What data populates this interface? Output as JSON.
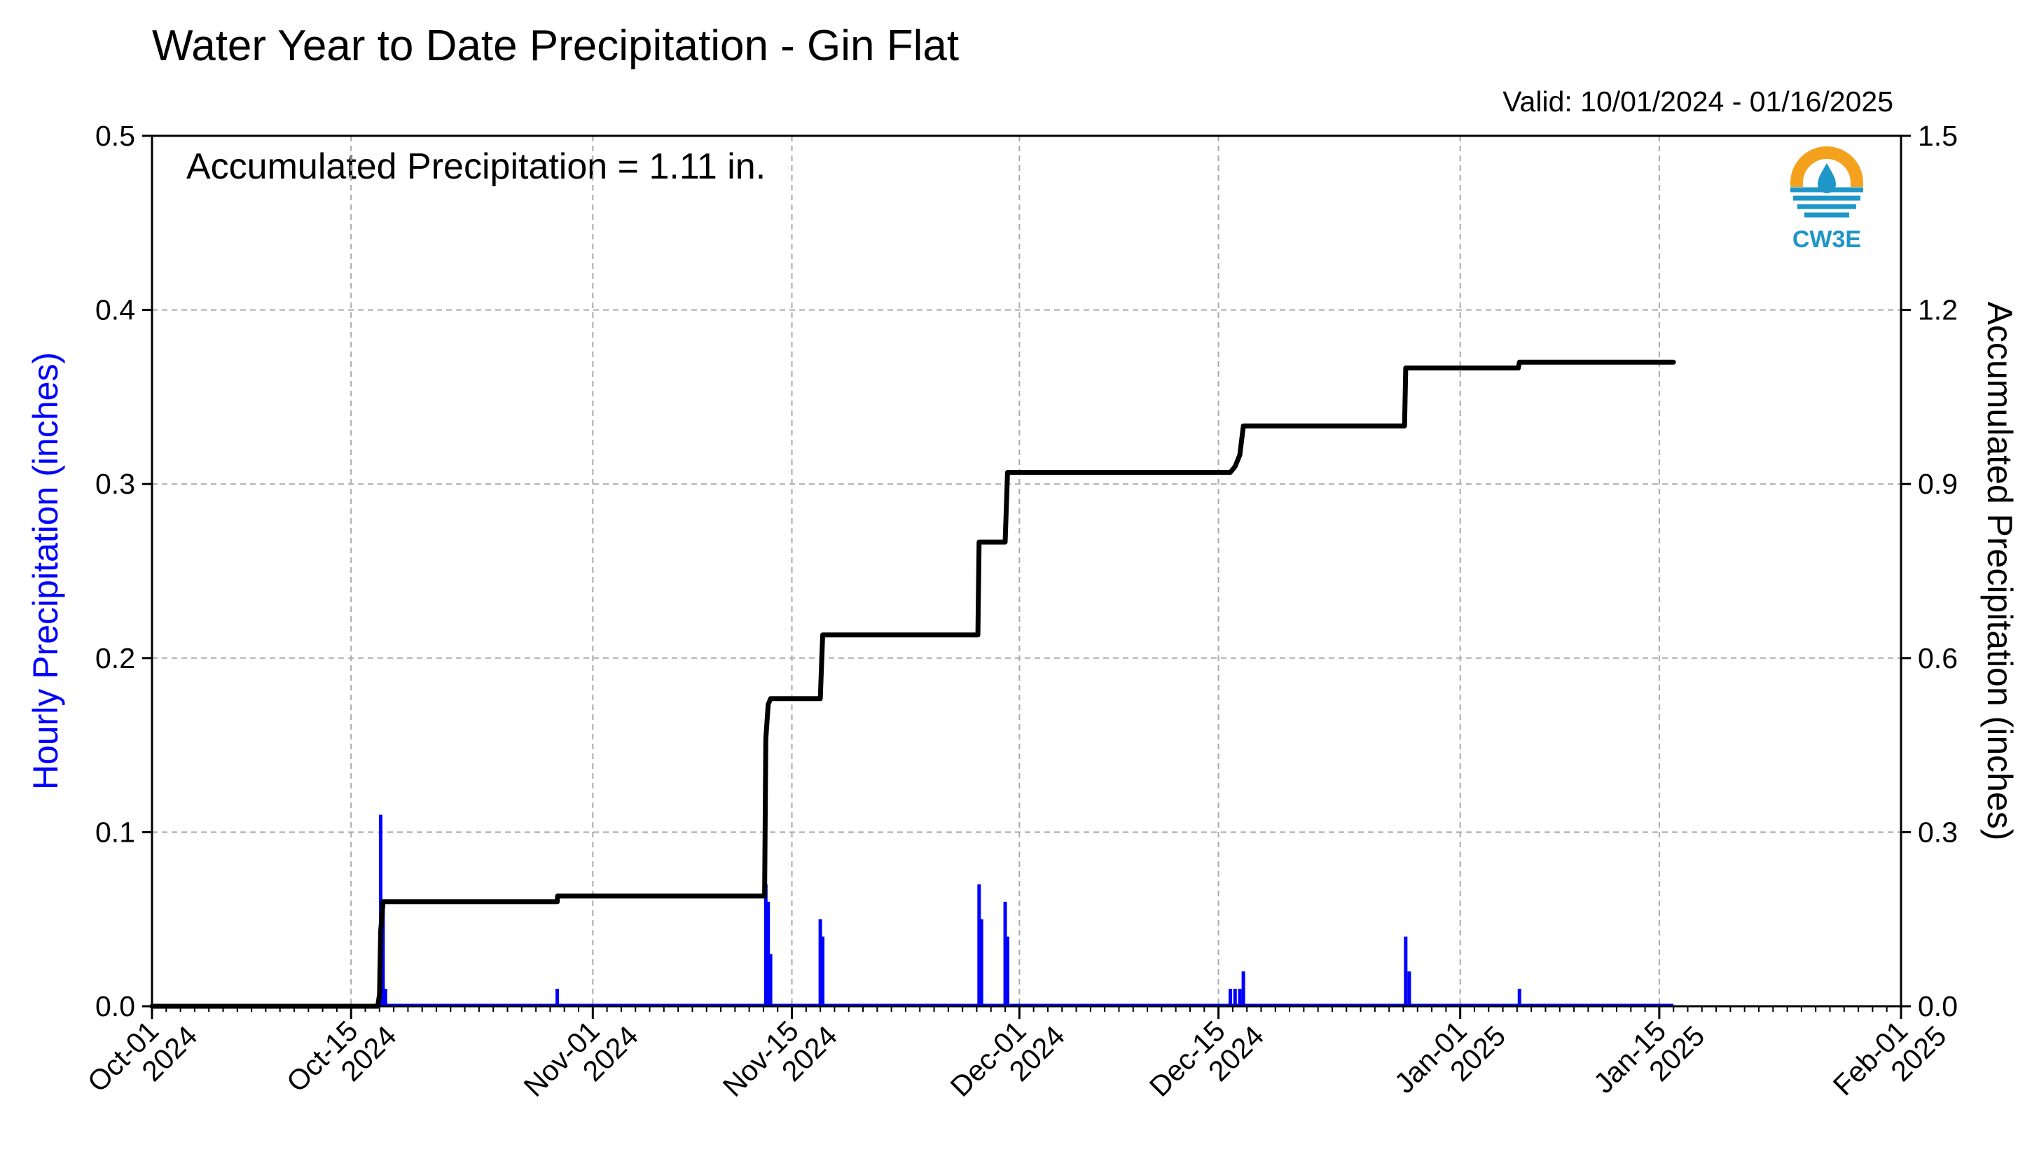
{
  "title": "Water Year to Date Precipitation - Gin Flat",
  "valid": "Valid: 10/01/2024 - 01/16/2025",
  "annotation": "Accumulated Precipitation = 1.11 in.",
  "logo": {
    "text": "CW3E",
    "colors": {
      "sun": "#f4a21e",
      "water": "#1f96c8"
    }
  },
  "chart_data": {
    "type": "bar+line",
    "xlim": [
      "2024-10-01",
      "2025-02-01"
    ],
    "x_tick_labels": [
      {
        "date": "2024-10-01",
        "line1": "Oct-01",
        "line2": "2024"
      },
      {
        "date": "2024-10-15",
        "line1": "Oct-15",
        "line2": "2024"
      },
      {
        "date": "2024-11-01",
        "line1": "Nov-01",
        "line2": "2024"
      },
      {
        "date": "2024-11-15",
        "line1": "Nov-15",
        "line2": "2024"
      },
      {
        "date": "2024-12-01",
        "line1": "Dec-01",
        "line2": "2024"
      },
      {
        "date": "2024-12-15",
        "line1": "Dec-15",
        "line2": "2024"
      },
      {
        "date": "2025-01-01",
        "line1": "Jan-01",
        "line2": "2025"
      },
      {
        "date": "2025-01-15",
        "line1": "Jan-15",
        "line2": "2025"
      },
      {
        "date": "2025-02-01",
        "line1": "Feb-01",
        "line2": "2025"
      }
    ],
    "y_left": {
      "label": "Hourly Precipitation (inches)",
      "lim": [
        0,
        0.5
      ],
      "ticks": [
        "0.0",
        "0.1",
        "0.2",
        "0.3",
        "0.4",
        "0.5"
      ],
      "color": "#0000ff"
    },
    "y_right": {
      "label": "Accumulated Precipitation (inches)",
      "lim": [
        0,
        1.5
      ],
      "ticks": [
        "0.0",
        "0.3",
        "0.6",
        "0.9",
        "1.2",
        "1.5"
      ],
      "color": "#000000"
    },
    "grid": true,
    "hourly_series": {
      "color": "#0000ff",
      "points": [
        [
          "2024-10-17T00:00",
          0.02
        ],
        [
          "2024-10-17T02:00",
          0.11
        ],
        [
          "2024-10-17T06:00",
          0.06
        ],
        [
          "2024-10-17T10:00",
          0.01
        ],
        [
          "2024-10-29T12:00",
          0.01
        ],
        [
          "2024-11-13T04:00",
          0.07
        ],
        [
          "2024-11-13T08:00",
          0.06
        ],
        [
          "2024-11-13T12:00",
          0.03
        ],
        [
          "2024-11-17T00:00",
          0.05
        ],
        [
          "2024-11-17T04:00",
          0.04
        ],
        [
          "2024-11-28T04:00",
          0.07
        ],
        [
          "2024-11-28T08:00",
          0.05
        ],
        [
          "2024-11-30T00:00",
          0.06
        ],
        [
          "2024-11-30T04:00",
          0.04
        ],
        [
          "2024-12-15T20:00",
          0.01
        ],
        [
          "2024-12-16T04:00",
          0.01
        ],
        [
          "2024-12-16T12:00",
          0.01
        ],
        [
          "2024-12-16T18:00",
          0.02
        ],
        [
          "2024-12-28T04:00",
          0.04
        ],
        [
          "2024-12-28T10:00",
          0.02
        ],
        [
          "2025-01-05T04:00",
          0.01
        ]
      ]
    },
    "accumulated_series": {
      "color": "#000000",
      "points": [
        [
          "2024-10-01T00:00",
          0.0
        ],
        [
          "2024-10-16T21:00",
          0.0
        ],
        [
          "2024-10-17T00:00",
          0.02
        ],
        [
          "2024-10-17T02:00",
          0.13
        ],
        [
          "2024-10-17T06:00",
          0.18
        ],
        [
          "2024-10-29T12:00",
          0.18
        ],
        [
          "2024-10-29T12:30",
          0.19
        ],
        [
          "2024-11-13T02:00",
          0.19
        ],
        [
          "2024-11-13T04:00",
          0.46
        ],
        [
          "2024-11-13T08:00",
          0.52
        ],
        [
          "2024-11-13T12:00",
          0.53
        ],
        [
          "2024-11-17T00:00",
          0.53
        ],
        [
          "2024-11-17T04:00",
          0.64
        ],
        [
          "2024-11-28T02:00",
          0.64
        ],
        [
          "2024-11-28T04:00",
          0.8
        ],
        [
          "2024-11-30T00:00",
          0.8
        ],
        [
          "2024-11-30T04:00",
          0.92
        ],
        [
          "2024-12-15T20:00",
          0.92
        ],
        [
          "2024-12-16T04:00",
          0.93
        ],
        [
          "2024-12-16T12:00",
          0.95
        ],
        [
          "2024-12-16T18:00",
          1.0
        ],
        [
          "2024-12-28T02:00",
          1.0
        ],
        [
          "2024-12-28T04:00",
          1.1
        ],
        [
          "2025-01-05T02:00",
          1.1
        ],
        [
          "2025-01-05T04:00",
          1.11
        ],
        [
          "2025-01-16T00:00",
          1.11
        ]
      ]
    }
  }
}
